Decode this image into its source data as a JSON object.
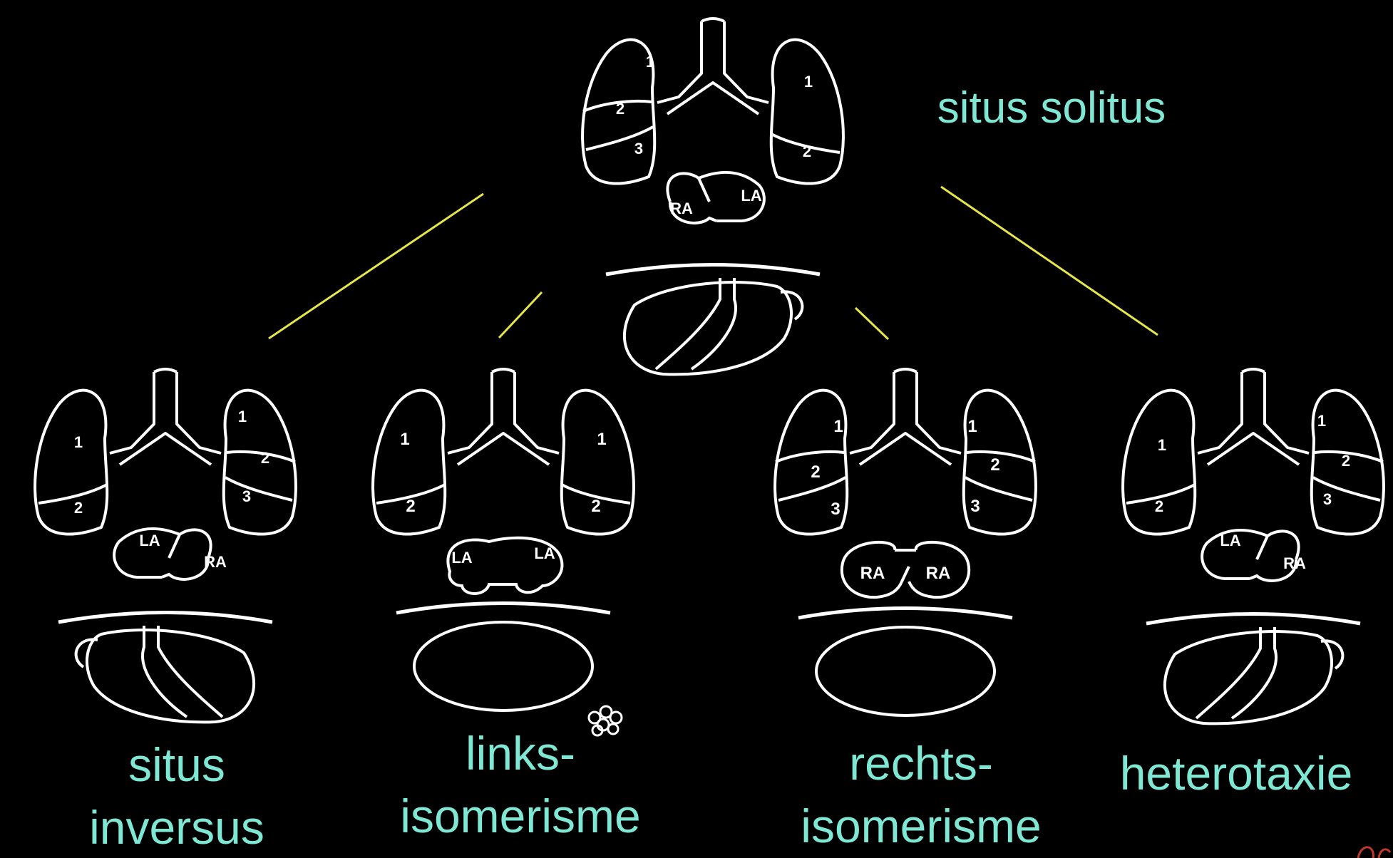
{
  "colors": {
    "background": "#000000",
    "drawing": "#ffffff",
    "label": "#7fe8d4",
    "connector": "#e6e64a",
    "mark": "#c0392b"
  },
  "labels": {
    "top": "situs solitus",
    "inversus": [
      "situs",
      "inversus"
    ],
    "links": [
      "links-",
      "isomerisme"
    ],
    "rechts": [
      "rechts-",
      "isomerisme"
    ],
    "hetero": "heterotaxie"
  },
  "diagrams": {
    "solitus": {
      "left_lobes": [
        "1",
        "2",
        "3"
      ],
      "right_lobes": [
        "1",
        "2"
      ],
      "atria": [
        "RA",
        "LA"
      ]
    },
    "inversus": {
      "left_lobes": [
        "1",
        "2"
      ],
      "right_lobes": [
        "1",
        "2",
        "3"
      ],
      "atria": [
        "LA",
        "RA"
      ]
    },
    "links": {
      "left_lobes": [
        "1",
        "2"
      ],
      "right_lobes": [
        "1",
        "2"
      ],
      "atria": [
        "LA",
        "LA"
      ]
    },
    "rechts": {
      "left_lobes": [
        "1",
        "2",
        "3"
      ],
      "right_lobes": [
        "1",
        "2",
        "3"
      ],
      "atria": [
        "RA",
        "RA"
      ]
    },
    "hetero": {
      "left_lobes": [
        "1",
        "2"
      ],
      "right_lobes": [
        "1",
        "2",
        "3"
      ],
      "atria": [
        "LA",
        "RA"
      ]
    }
  }
}
